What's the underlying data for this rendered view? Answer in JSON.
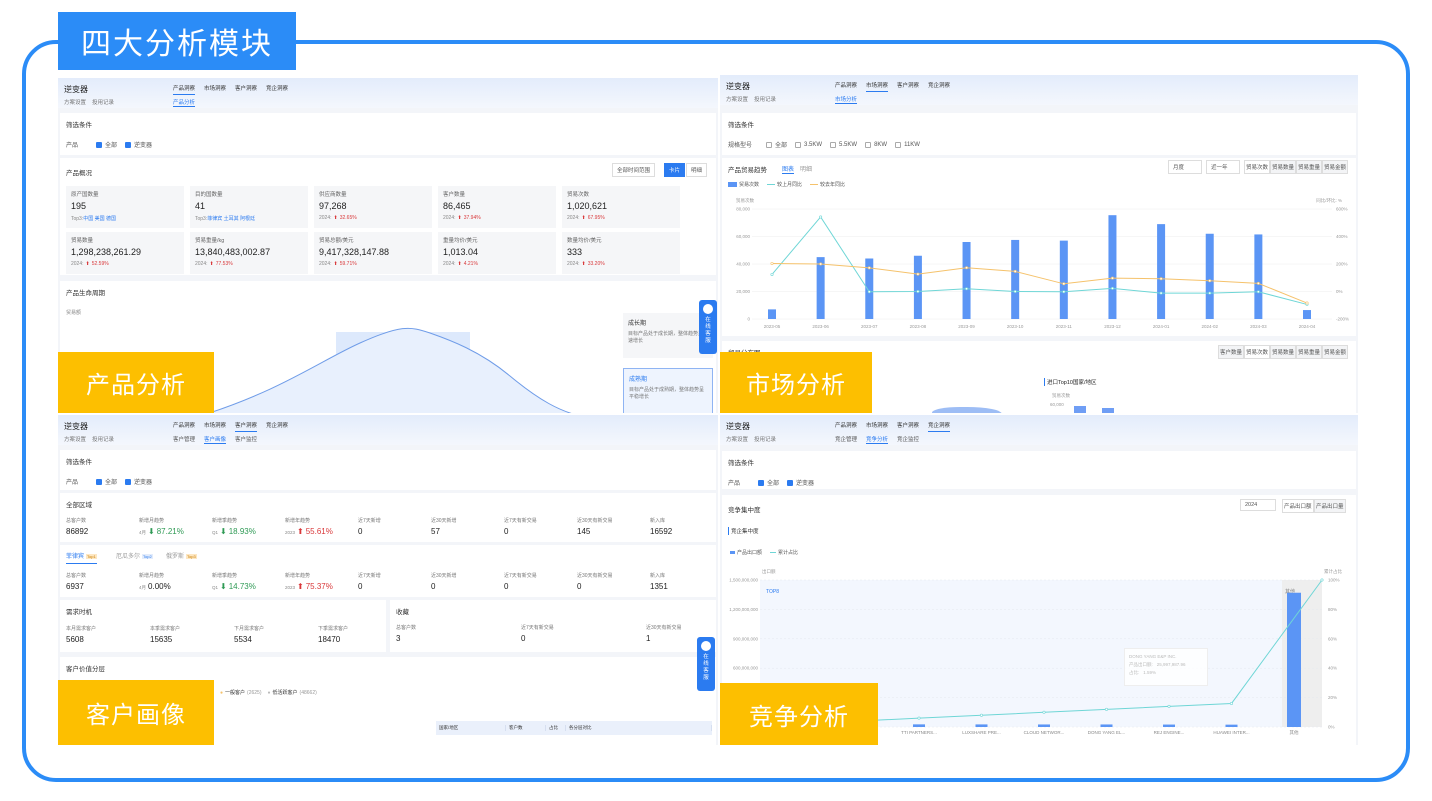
{
  "title": "四大分析模块",
  "section_labels": {
    "product": "产品分析",
    "market": "市场分析",
    "customer": "客户画像",
    "competition": "竞争分析"
  },
  "common": {
    "product": "逆变器",
    "scheme": "方案设置",
    "record": "投用记录",
    "tabs": [
      "产品洞察",
      "市场洞察",
      "客户洞察",
      "竞企洞察"
    ],
    "filter_title": "筛选条件",
    "product_label": "产品",
    "all": "全部",
    "chat": "在线客服",
    "brand_color": "#2b8cf7",
    "label_color": "#fdbf00"
  },
  "product": {
    "subtab": "产品分析",
    "overview_title": "产品概况",
    "range_select": "全部时间范围",
    "view_card": "卡片",
    "view_detail": "明细",
    "cards": [
      {
        "label": "原产国数量",
        "value": "195",
        "sub_prefix": "Top3:",
        "sub": "中国 美国 德国",
        "kind": "top"
      },
      {
        "label": "目的国数量",
        "value": "41",
        "sub_prefix": "Top3:",
        "sub": "菲律宾 土耳其 阿根廷",
        "kind": "top"
      },
      {
        "label": "供应商数量",
        "value": "97,268",
        "sub_prefix": "2024:",
        "sub": "32.65%",
        "kind": "up"
      },
      {
        "label": "客户数量",
        "value": "86,465",
        "sub_prefix": "2024:",
        "sub": "37.94%",
        "kind": "up"
      },
      {
        "label": "贸易次数",
        "value": "1,020,621",
        "sub_prefix": "2024:",
        "sub": "67.95%",
        "kind": "up"
      },
      {
        "label": "贸易数量",
        "value": "1,298,238,261.29",
        "sub_prefix": "2024:",
        "sub": "52.59%",
        "kind": "up"
      },
      {
        "label": "贸易重量/kg",
        "value": "13,840,483,002.87",
        "sub_prefix": "2024:",
        "sub": "77.53%",
        "kind": "up"
      },
      {
        "label": "贸易总额/美元",
        "value": "9,417,328,147.88",
        "sub_prefix": "2024:",
        "sub": "59.71%",
        "kind": "up"
      },
      {
        "label": "重量均价/美元",
        "value": "1,013.04",
        "sub_prefix": "2024:",
        "sub": "4.21%",
        "kind": "up"
      },
      {
        "label": "数量均价/美元",
        "value": "333",
        "sub_prefix": "2024:",
        "sub": "33.20%",
        "kind": "up"
      }
    ],
    "lifecycle_title": "产品生命周期",
    "lifecycle_axis": "贸易额",
    "stages": [
      {
        "name": "成长期",
        "desc": "目标产品处于成长期，整体趋势呈快速增长"
      },
      {
        "name": "成熟期",
        "desc": "目标产品处于成熟期，整体趋势呈平稳增长"
      }
    ]
  },
  "market": {
    "subtab": "市场分析",
    "spec_label": "规格型号",
    "specs": [
      "全部",
      "3.5KW",
      "5.5KW",
      "8KW",
      "11KW"
    ],
    "trend_title": "产品贸易趋势",
    "view_chart": "图表",
    "view_detail": "明细",
    "period_select": "月度",
    "range_select": "近一年",
    "metrics": [
      "贸易次数",
      "贸易数量",
      "贸易重量",
      "贸易金额"
    ],
    "dist_title": "贸易分布图",
    "dist_metrics": [
      "客户数量",
      "贸易次数",
      "贸易数量",
      "贸易重量",
      "贸易金额"
    ],
    "top10_title": "进口Top10国家/地区",
    "top10_axis": "贸易次数",
    "top10_tick": "60,000"
  },
  "chart_data": [
    {
      "type": "bar",
      "categories": [
        "2023-05",
        "2023-06",
        "2023-07",
        "2023-08",
        "2023-09",
        "2023-10",
        "2023-11",
        "2023-12",
        "2024-01",
        "2024-02",
        "2024-03",
        "2024-04"
      ],
      "series": [
        {
          "name": "贸易次数",
          "type": "bar",
          "axis": "left",
          "color": "#5b95f5",
          "values": [
            7000,
            45000,
            44000,
            46000,
            56000,
            57500,
            57000,
            75500,
            69000,
            62000,
            61500,
            6500
          ]
        },
        {
          "name": "较上月同比",
          "type": "line",
          "axis": "right",
          "color": "#6fd6d6",
          "values": [
            124,
            542,
            -2,
            0,
            20,
            0,
            -2,
            23,
            -12,
            -12,
            -2,
            -94
          ]
        },
        {
          "name": "较去年同比",
          "type": "line",
          "axis": "right",
          "color": "#f5c26b",
          "values": [
            204,
            200,
            172,
            126,
            173,
            146,
            56,
            97,
            93,
            78,
            59,
            -84
          ]
        }
      ],
      "ylabel": "贸易次数",
      "y2label": "同比/环比: %",
      "ylim": [
        0,
        80000
      ],
      "y2lim": [
        -200,
        600
      ],
      "yticks": [
        "0",
        "20,000",
        "40,000",
        "60,000",
        "80,000"
      ],
      "y2ticks": [
        "-200%",
        "0%",
        "200%",
        "400%",
        "600%"
      ],
      "grid": true,
      "legend": "top-left"
    },
    {
      "type": "bar",
      "title": "竞企集中度",
      "categories": [
        "",
        "",
        "TTI PARTNERS...",
        "LUXSHARE PRE...",
        "CLOUD NETWOR...",
        "DONG YANG EL...",
        "REJ ENGINE...",
        "HUAWEI INTER...",
        "其他"
      ],
      "series": [
        {
          "name": "产品出口额",
          "type": "bar",
          "axis": "left",
          "color": "#5b95f5",
          "values": [
            30000000,
            28000000,
            27000000,
            26500000,
            26000000,
            25997987.96,
            25000000,
            24000000,
            1370000000
          ]
        },
        {
          "name": "累计占比",
          "type": "line",
          "axis": "right",
          "color": "#6fd6d6",
          "values": [
            2,
            4,
            6,
            8,
            10,
            12,
            14,
            16,
            100
          ]
        }
      ],
      "ylabel": "出口额",
      "y2label": "累计占比",
      "ylim": [
        0,
        1500000000
      ],
      "y2lim": [
        0,
        100
      ],
      "yticks": [
        "0",
        "300,000,000",
        "600,000,000",
        "900,000,000",
        "1,200,000,000",
        "1,500,000,000"
      ],
      "y2ticks": [
        "0%",
        "20%",
        "40%",
        "60%",
        "80%",
        "100%"
      ],
      "zones": [
        "TOP8",
        "其他"
      ],
      "tooltip": {
        "title": "DONG YANG E&P INC.",
        "row1_label": "产品出口额:",
        "row1_value": "25,997,987.96",
        "row2_label": "占比:",
        "row2_value": "1.59%"
      },
      "grid": true,
      "legend": "top-left"
    }
  ],
  "customer": {
    "subtabs": [
      "客户管理",
      "客户画像",
      "客户监控"
    ],
    "all_region": "全部区域",
    "stat_labels": [
      "总客户数",
      "新增月趋势",
      "新增季趋势",
      "新增年趋势",
      "近7天新增",
      "近30天新增",
      "近7天有新交易",
      "近30天有新交易",
      "新入库"
    ],
    "all_stats": {
      "total": "86892",
      "m_prefix": "4月",
      "m": "87.21%",
      "q_prefix": "Q1",
      "q": "18.93%",
      "y_prefix": "2023",
      "y": "55.61%",
      "d7": "0",
      "d30": "57",
      "t7": "0",
      "t30": "145",
      "new": "16592"
    },
    "region_tabs": [
      {
        "name": "菲律宾",
        "badge": "Top1"
      },
      {
        "name": "厄瓜多尔",
        "badge": "Top2"
      },
      {
        "name": "俄罗斯",
        "badge": "Top3"
      }
    ],
    "region_stats": {
      "total": "6937",
      "m_prefix": "4月",
      "m": "0.00%",
      "q_prefix": "Q1",
      "q": "14.73%",
      "y_prefix": "2023",
      "y": "75.37%",
      "d7": "0",
      "d30": "0",
      "t7": "0",
      "t30": "0",
      "new": "1351"
    },
    "demand_title": "需求时机",
    "demand": [
      {
        "label": "本月需求客户",
        "value": "5608"
      },
      {
        "label": "本季需求客户",
        "value": "15635"
      },
      {
        "label": "下月需求客户",
        "value": "5534"
      },
      {
        "label": "下季需求客户",
        "value": "18470"
      }
    ],
    "fav_title": "收藏",
    "fav": [
      {
        "label": "总客户数",
        "value": "3"
      },
      {
        "label": "近7天有新交易",
        "value": "0"
      },
      {
        "label": "近30天有新交易",
        "value": "1"
      }
    ],
    "value_title": "客户价值分层",
    "value_legend": [
      {
        "name": "一般客户",
        "count": "(2625)"
      },
      {
        "name": "低活跃客户",
        "count": "(48662)"
      }
    ],
    "table_headers": [
      "国家/地区",
      "客户数",
      "占比",
      "各分层对比"
    ]
  },
  "competition": {
    "subtabs": [
      "竞企管理",
      "竞争分析",
      "竞企监控"
    ],
    "section_title": "竞争集中度",
    "year_select": "2024",
    "toggle": [
      "产品出口额",
      "产品出口量"
    ]
  }
}
